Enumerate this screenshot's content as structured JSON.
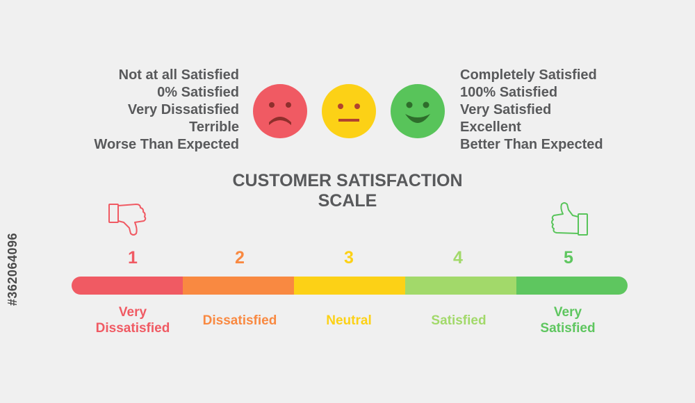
{
  "left_descriptions": [
    "Not at all Satisfied",
    "0% Satisfied",
    "Very Dissatisfied",
    "Terrible",
    "Worse Than Expected"
  ],
  "right_descriptions": [
    "Completely Satisfied",
    "100% Satisfied",
    "Very Satisfied",
    "Excellent",
    "Better Than Expected"
  ],
  "faces": [
    {
      "icon": "sad-face-icon",
      "color": "#f05a63"
    },
    {
      "icon": "neutral-face-icon",
      "color": "#fcd116"
    },
    {
      "icon": "happy-face-icon",
      "color": "#58c45a"
    }
  ],
  "title": {
    "line1": "CUSTOMER SATISFACTION",
    "line2": "SCALE"
  },
  "icons": {
    "left": "thumbs-down-icon",
    "right": "thumbs-up-icon"
  },
  "scale": [
    {
      "number": "1",
      "label_line1": "Very",
      "label_line2": "Dissatisfied",
      "color": "#f05a63"
    },
    {
      "number": "2",
      "label_line1": "Dissatisfied",
      "label_line2": "",
      "color": "#f98941"
    },
    {
      "number": "3",
      "label_line1": "Neutral",
      "label_line2": "",
      "color": "#fcd116"
    },
    {
      "number": "4",
      "label_line1": "Satisfied",
      "label_line2": "",
      "color": "#a2d96a"
    },
    {
      "number": "5",
      "label_line1": "Very",
      "label_line2": "Satisfied",
      "color": "#5ec65f"
    }
  ],
  "watermark_id": "#362064096"
}
